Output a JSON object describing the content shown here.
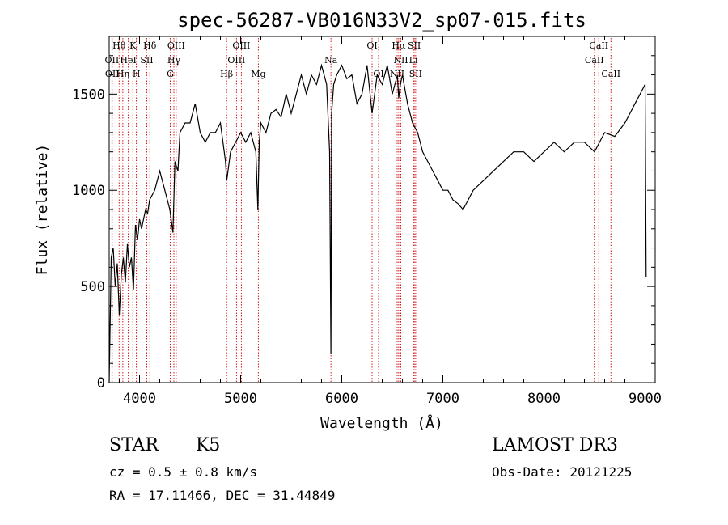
{
  "chart_data": {
    "type": "line",
    "title": "spec-56287-VB016N33V2_sp07-015.fits",
    "xlabel": "Wavelength (Å)",
    "ylabel": "Flux (relative)",
    "xlim": [
      3700,
      9100
    ],
    "ylim": [
      0,
      1800
    ],
    "x_ticks": [
      4000,
      5000,
      6000,
      7000,
      8000,
      9000
    ],
    "y_ticks": [
      0,
      500,
      1000,
      1500
    ],
    "grid": false,
    "series": [
      {
        "x": [
          3700,
          3720,
          3740,
          3760,
          3780,
          3800,
          3820,
          3840,
          3860,
          3880,
          3900,
          3920,
          3940,
          3960,
          3980,
          4000,
          4020,
          4040,
          4060,
          4080,
          4100,
          4150,
          4200,
          4250,
          4300,
          4330,
          4350,
          4380,
          4400,
          4450,
          4500,
          4550,
          4600,
          4650,
          4700,
          4750,
          4800,
          4850,
          4862,
          4900,
          4950,
          5000,
          5050,
          5100,
          5150,
          5170,
          5184,
          5200,
          5250,
          5300,
          5350,
          5400,
          5450,
          5500,
          5550,
          5600,
          5650,
          5700,
          5750,
          5800,
          5850,
          5880,
          5893,
          5900,
          5920,
          5950,
          6000,
          6050,
          6100,
          6150,
          6200,
          6250,
          6300,
          6350,
          6400,
          6450,
          6500,
          6550,
          6563,
          6580,
          6600,
          6650,
          6700,
          6750,
          6800,
          6850,
          6900,
          6950,
          7000,
          7050,
          7100,
          7150,
          7200,
          7250,
          7300,
          7400,
          7500,
          7600,
          7700,
          7800,
          7900,
          8000,
          8100,
          8200,
          8300,
          8400,
          8500,
          8600,
          8700,
          8800,
          8850,
          8900,
          8950,
          9000,
          9010
        ],
        "y": [
          0,
          650,
          700,
          500,
          620,
          350,
          560,
          650,
          520,
          720,
          600,
          650,
          480,
          820,
          740,
          850,
          800,
          850,
          900,
          880,
          950,
          1000,
          1100,
          1000,
          900,
          780,
          1150,
          1100,
          1300,
          1350,
          1350,
          1450,
          1300,
          1250,
          1300,
          1300,
          1350,
          1150,
          1050,
          1200,
          1250,
          1300,
          1250,
          1300,
          1200,
          900,
          1250,
          1350,
          1300,
          1400,
          1420,
          1380,
          1500,
          1400,
          1500,
          1600,
          1500,
          1600,
          1550,
          1650,
          1550,
          1200,
          150,
          1400,
          1550,
          1600,
          1650,
          1580,
          1600,
          1450,
          1500,
          1650,
          1400,
          1600,
          1550,
          1650,
          1500,
          1600,
          1480,
          1550,
          1600,
          1450,
          1350,
          1300,
          1200,
          1150,
          1100,
          1050,
          1000,
          1000,
          950,
          930,
          900,
          950,
          1000,
          1050,
          1100,
          1150,
          1200,
          1200,
          1150,
          1200,
          1250,
          1200,
          1250,
          1250,
          1200,
          1300,
          1280,
          1350,
          1400,
          1450,
          1500,
          1550,
          550
        ]
      }
    ],
    "line_markers": [
      {
        "label": "Hθ",
        "x": 3798,
        "row": 0
      },
      {
        "label": "K",
        "x": 3934,
        "row": 0
      },
      {
        "label": "Hδ",
        "x": 4102,
        "row": 0
      },
      {
        "label": "OIII",
        "x": 4363,
        "row": 0
      },
      {
        "label": "OIII",
        "x": 5007,
        "row": 0
      },
      {
        "label": "OI",
        "x": 6300,
        "row": 0
      },
      {
        "label": "Hα",
        "x": 6563,
        "row": 0
      },
      {
        "label": "SII",
        "x": 6717,
        "row": 0
      },
      {
        "label": "CaII",
        "x": 8542,
        "row": 0
      },
      {
        "label": "OII",
        "x": 3727,
        "row": 1
      },
      {
        "label": "HeI",
        "x": 3889,
        "row": 1
      },
      {
        "label": "SII",
        "x": 4072,
        "row": 1
      },
      {
        "label": "Hγ",
        "x": 4340,
        "row": 1
      },
      {
        "label": "OIII",
        "x": 4959,
        "row": 1
      },
      {
        "label": "Na",
        "x": 5893,
        "row": 1
      },
      {
        "label": "NII",
        "x": 6584,
        "row": 1
      },
      {
        "label": "Li",
        "x": 6708,
        "row": 1
      },
      {
        "label": "CaII",
        "x": 8498,
        "row": 1
      },
      {
        "label": "OII",
        "x": 3730,
        "row": 2
      },
      {
        "label": "Hη",
        "x": 3835,
        "row": 2
      },
      {
        "label": "H",
        "x": 3969,
        "row": 2
      },
      {
        "label": "G",
        "x": 4304,
        "row": 2
      },
      {
        "label": "Hβ",
        "x": 4861,
        "row": 2
      },
      {
        "label": "Mg",
        "x": 5175,
        "row": 2
      },
      {
        "label": "OI",
        "x": 6364,
        "row": 2
      },
      {
        "label": "NII",
        "x": 6548,
        "row": 2
      },
      {
        "label": "SII",
        "x": 6731,
        "row": 2
      },
      {
        "label": "CaII",
        "x": 8662,
        "row": 2
      }
    ]
  },
  "info": {
    "object_type": "STAR",
    "subclass": "K5",
    "cz": "cz = 0.5 ± 0.8 km/s",
    "coords": "RA =  17.11466, DEC =  31.44849",
    "survey": "LAMOST DR3",
    "obs_date": "Obs-Date: 20121225"
  }
}
